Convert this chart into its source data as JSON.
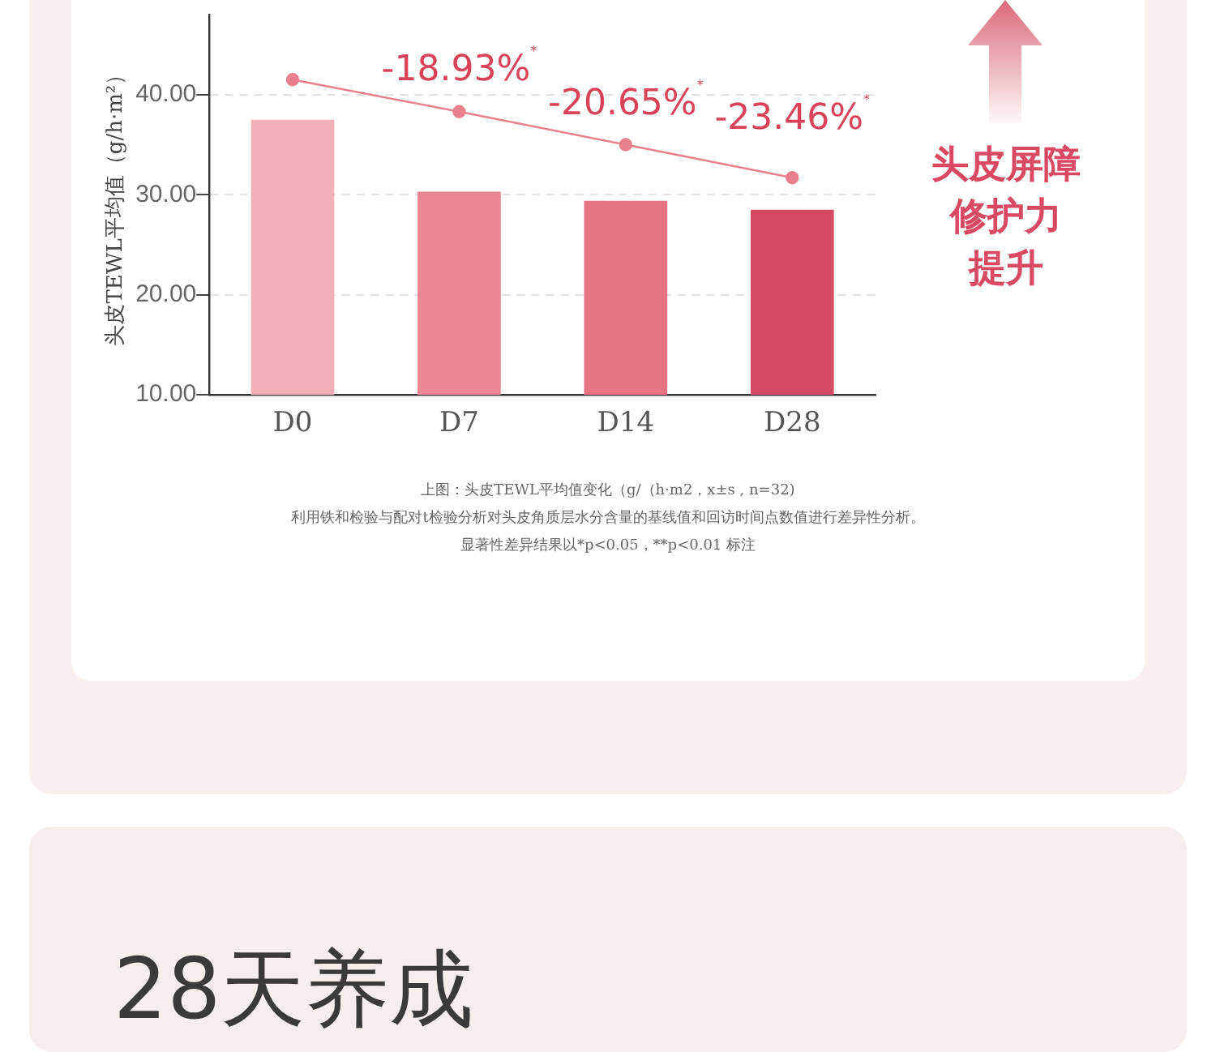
{
  "chart_data": {
    "type": "bar",
    "ylabel": "头皮TEWL平均值（g/h·m²）",
    "categories": [
      "D0",
      "D7",
      "D14",
      "D28"
    ],
    "series": [
      {
        "colors": [
          "#f1afb8",
          "#ea8794",
          "#e87483",
          "#d54b63"
        ],
        "values": [
          37.5,
          30.3,
          29.4,
          28.5
        ]
      },
      {
        "type": "line",
        "color": "#e9808d",
        "values": [
          41.5,
          38.3,
          35.0,
          31.7
        ]
      }
    ],
    "marker": "circle",
    "line_style": "solid",
    "ylim": [
      10,
      48
    ],
    "yticks": [
      {
        "value": 10,
        "label": "10.00"
      },
      {
        "value": 20,
        "label": "20.00"
      },
      {
        "value": 30,
        "label": "30.00"
      },
      {
        "value": 40,
        "label": "40.00"
      }
    ],
    "grid": "y",
    "legend": false,
    "annotations": [
      "-18.93%$^{*}$",
      "-20.65%$^{*}$",
      "-23.46%$^{*}$",
      "头皮屏障",
      "修护力",
      "提升",
      "上图：头皮TEWL平均值变化（g/（h·m2，x±s , n=32)",
      "利用铁和检验与配对t检验分析对头皮角质层水分含量的基线值和回访时间点数值进行差异性分析。",
      "显著性差异结果以*p<0.05，**p<0.01 标注",
      "28天养成"
    ]
  }
}
